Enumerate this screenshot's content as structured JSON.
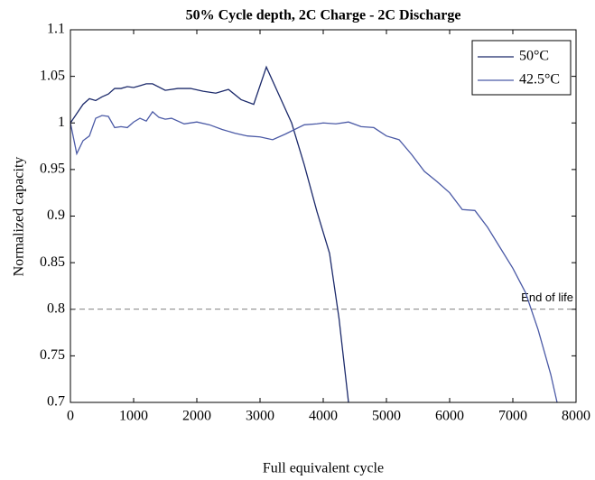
{
  "chart_data": {
    "type": "line",
    "title": "50% Cycle depth, 2C Charge - 2C Discharge",
    "xlabel": "Full equivalent cycle",
    "ylabel": "Normalized capacity",
    "xlim": [
      0,
      8000
    ],
    "ylim": [
      0.7,
      1.1
    ],
    "xticks": [
      0,
      1000,
      2000,
      3000,
      4000,
      5000,
      6000,
      7000,
      8000
    ],
    "yticks": [
      0.7,
      0.75,
      0.8,
      0.85,
      0.9,
      0.95,
      1,
      1.05,
      1.1
    ],
    "legend": "upper right",
    "threshold": {
      "value": 0.8,
      "label": "End of life"
    },
    "series": [
      {
        "name": "50°C",
        "color": "#1c2a6b",
        "x": [
          0,
          100,
          200,
          300,
          400,
          500,
          600,
          700,
          800,
          900,
          1000,
          1100,
          1200,
          1300,
          1500,
          1700,
          1900,
          2100,
          2300,
          2500,
          2700,
          2900,
          3100,
          3300,
          3500,
          3700,
          3900,
          4100,
          4250,
          4400
        ],
        "values": [
          1.0,
          1.01,
          1.02,
          1.026,
          1.024,
          1.028,
          1.031,
          1.037,
          1.037,
          1.039,
          1.038,
          1.04,
          1.042,
          1.042,
          1.035,
          1.037,
          1.037,
          1.034,
          1.032,
          1.036,
          1.025,
          1.02,
          1.06,
          1.03,
          1.0,
          0.955,
          0.905,
          0.86,
          0.79,
          0.7
        ]
      },
      {
        "name": "42.5°C",
        "color": "#4b5aa6",
        "x": [
          0,
          100,
          200,
          300,
          400,
          500,
          600,
          700,
          800,
          900,
          1000,
          1100,
          1200,
          1300,
          1400,
          1500,
          1600,
          1800,
          2000,
          2200,
          2400,
          2600,
          2800,
          3000,
          3200,
          3400,
          3700,
          3900,
          4000,
          4200,
          4400,
          4600,
          4800,
          5000,
          5200,
          5400,
          5600,
          5800,
          6000,
          6200,
          6400,
          6600,
          6800,
          7000,
          7200,
          7400,
          7600,
          7700
        ],
        "values": [
          1.0,
          0.967,
          0.981,
          0.986,
          1.005,
          1.008,
          1.007,
          0.995,
          0.996,
          0.995,
          1.001,
          1.005,
          1.002,
          1.012,
          1.006,
          1.004,
          1.005,
          0.999,
          1.001,
          0.998,
          0.993,
          0.989,
          0.986,
          0.985,
          0.982,
          0.988,
          0.998,
          0.999,
          1.0,
          0.999,
          1.001,
          0.996,
          0.995,
          0.986,
          0.982,
          0.966,
          0.948,
          0.937,
          0.925,
          0.907,
          0.906,
          0.888,
          0.866,
          0.844,
          0.818,
          0.778,
          0.73,
          0.7
        ]
      }
    ]
  }
}
